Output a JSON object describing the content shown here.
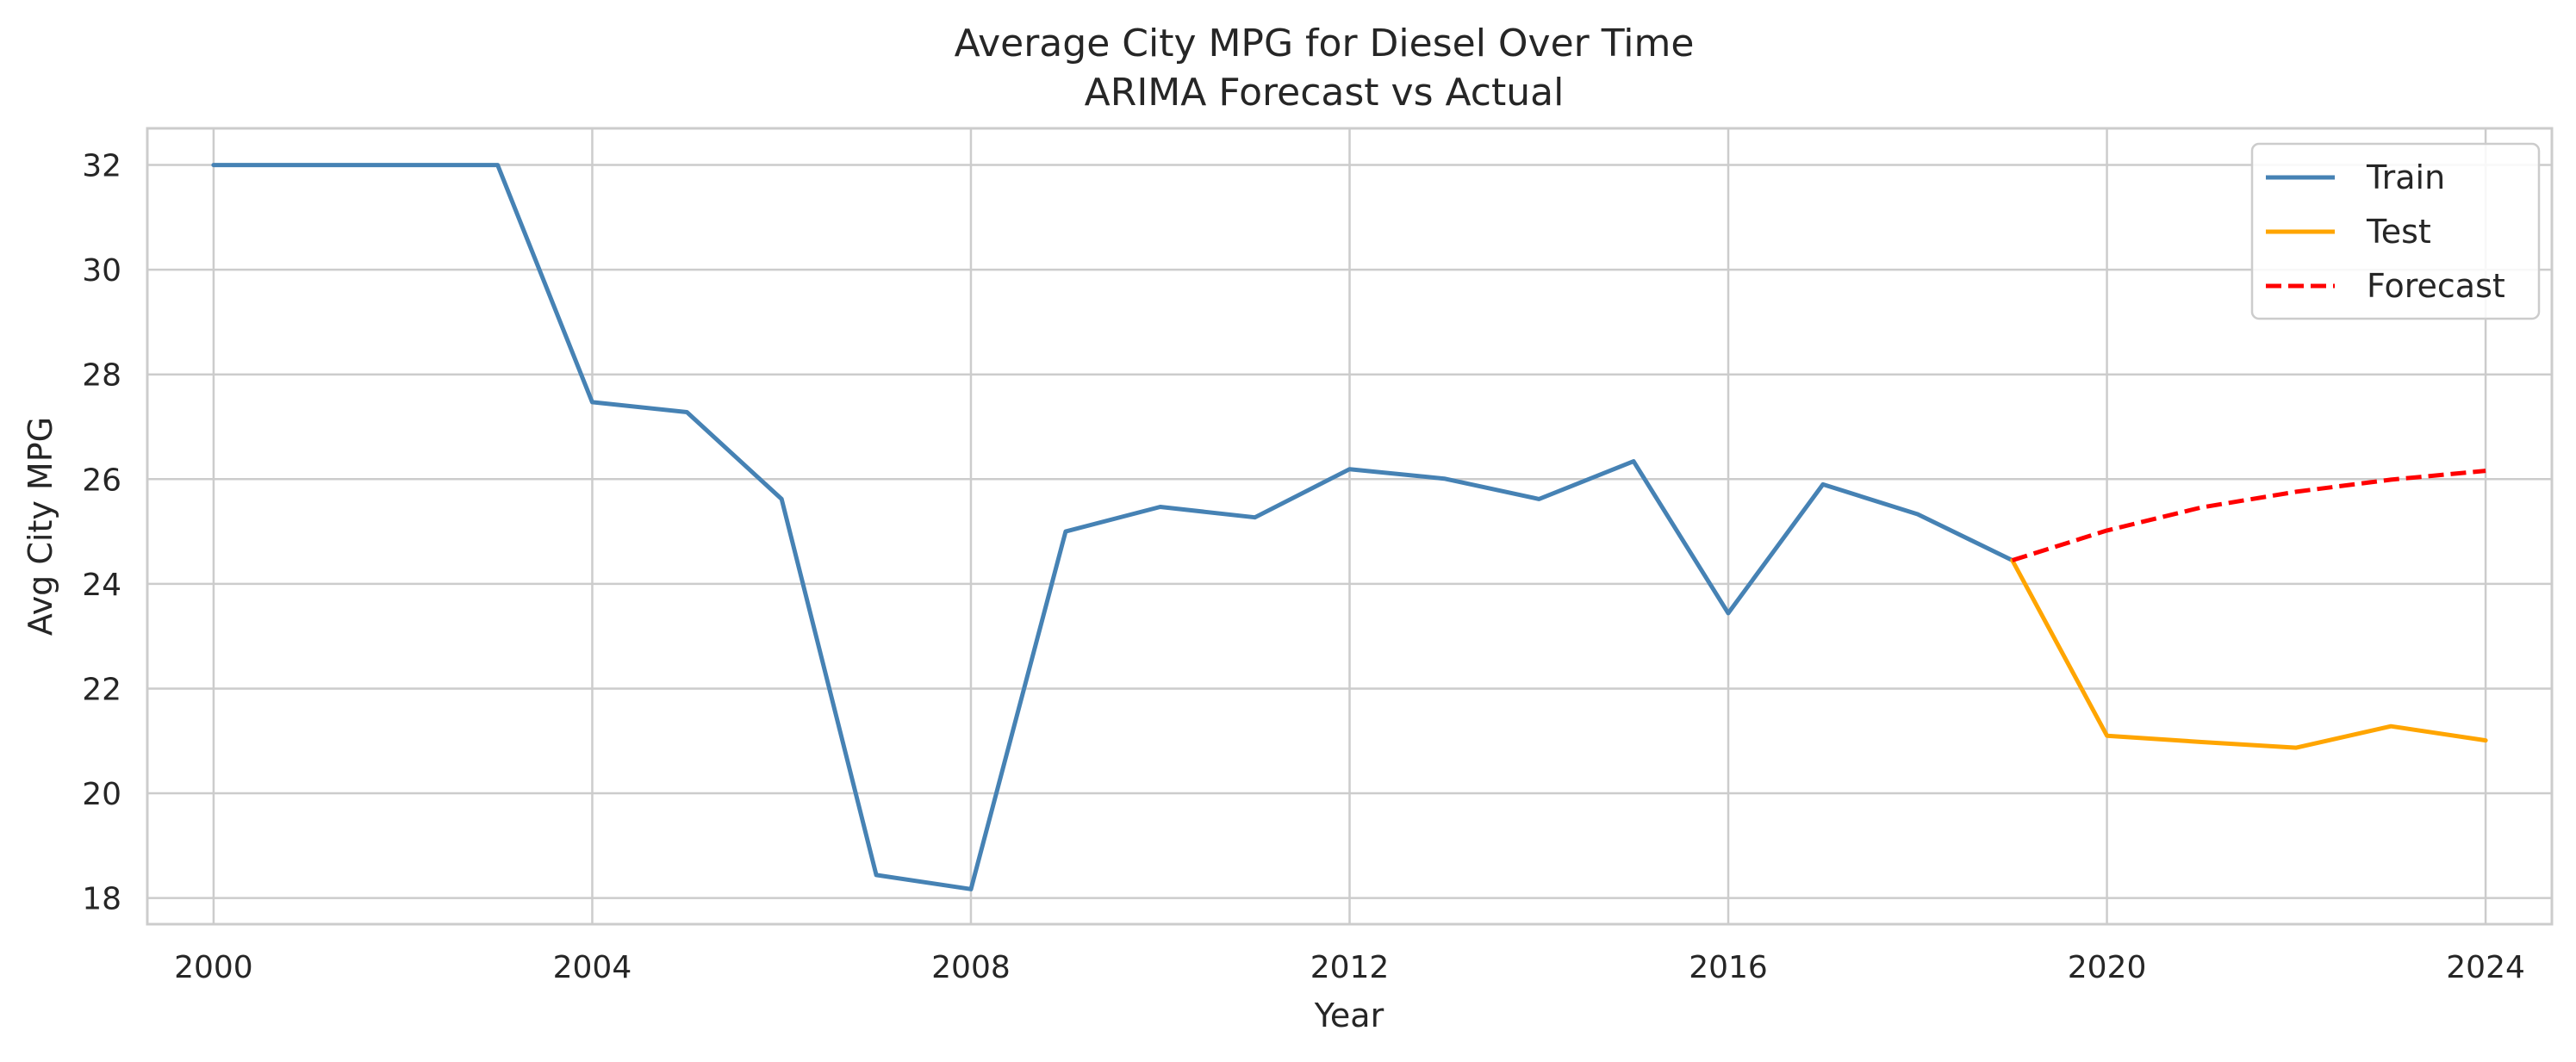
{
  "chart_data": {
    "type": "line",
    "title": "Average City MPG for Diesel Over Time",
    "subtitle": "ARIMA Forecast vs Actual",
    "xlabel": "Year",
    "ylabel": "Avg City MPG",
    "xlim": [
      1999.3,
      2024.7
    ],
    "ylim": [
      17.5,
      32.7
    ],
    "x_ticks": [
      2000,
      2004,
      2008,
      2012,
      2016,
      2020,
      2024
    ],
    "y_ticks": [
      18,
      20,
      22,
      24,
      26,
      28,
      30,
      32
    ],
    "grid": true,
    "legend_position": "top-right",
    "series": [
      {
        "name": "Train",
        "color": "#4682b4",
        "style": "solid",
        "x": [
          2000,
          2001,
          2002,
          2003,
          2004,
          2005,
          2006,
          2007,
          2008,
          2009,
          2010,
          2011,
          2012,
          2013,
          2014,
          2015,
          2016,
          2017,
          2018,
          2019
        ],
        "y": [
          32.0,
          32.0,
          32.0,
          32.0,
          27.47,
          27.28,
          25.62,
          18.44,
          18.17,
          25.0,
          25.47,
          25.27,
          26.19,
          26.01,
          25.62,
          26.34,
          23.44,
          25.9,
          25.33,
          24.45
        ]
      },
      {
        "name": "Test",
        "color": "#ffa500",
        "style": "solid",
        "x": [
          2019,
          2020,
          2021,
          2022,
          2023,
          2024
        ],
        "y": [
          24.45,
          21.1,
          20.98,
          20.87,
          21.28,
          21.01
        ]
      },
      {
        "name": "Forecast",
        "color": "#ff0000",
        "style": "dashed",
        "x": [
          2019,
          2020,
          2021,
          2022,
          2023,
          2024
        ],
        "y": [
          24.45,
          25.02,
          25.46,
          25.76,
          25.99,
          26.16
        ]
      }
    ]
  }
}
